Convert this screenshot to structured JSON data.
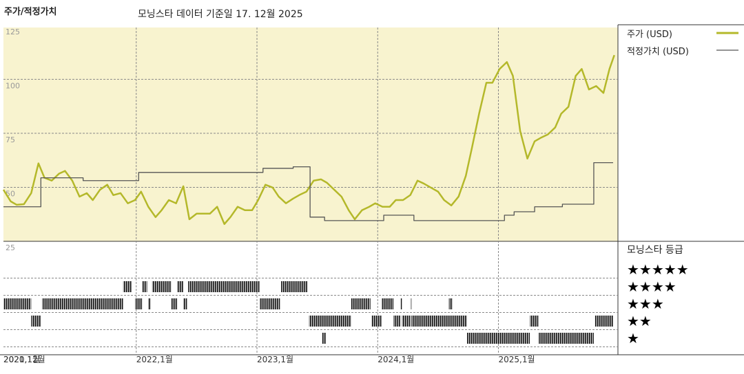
{
  "chart_data": {
    "type": "line",
    "title": "주가/적정가치",
    "subtitle": "모닝스타 데이터 기준일 17. 12월 2025",
    "xlim": [
      2020.9,
      2025.99
    ],
    "xticks": [
      {
        "value": 2020.92,
        "label": "2020,12월"
      },
      {
        "value": 2021.0,
        "label": "2021,1월"
      },
      {
        "value": 2022.0,
        "label": "2022,1월"
      },
      {
        "value": 2023.0,
        "label": "2023,1월"
      },
      {
        "value": 2024.0,
        "label": "2024,1월"
      },
      {
        "value": 2025.0,
        "label": "2025,1월"
      }
    ],
    "ylim": [
      25,
      124
    ],
    "yticks": [
      25,
      50,
      75,
      100,
      125
    ],
    "grid": true,
    "series": [
      {
        "name": "주가 (USD)",
        "color": "#b4b82a",
        "drawstyle": "line",
        "x": [
          2020.9,
          2020.96,
          2021.01,
          2021.07,
          2021.13,
          2021.19,
          2021.24,
          2021.3,
          2021.36,
          2021.41,
          2021.47,
          2021.53,
          2021.59,
          2021.64,
          2021.7,
          2021.76,
          2021.81,
          2021.87,
          2021.93,
          2021.99,
          2022.04,
          2022.1,
          2022.16,
          2022.21,
          2022.27,
          2022.33,
          2022.39,
          2022.44,
          2022.5,
          2022.56,
          2022.61,
          2022.67,
          2022.73,
          2022.78,
          2022.84,
          2022.9,
          2022.96,
          2023.01,
          2023.07,
          2023.13,
          2023.18,
          2023.24,
          2023.3,
          2023.36,
          2023.41,
          2023.47,
          2023.53,
          2023.58,
          2023.64,
          2023.7,
          2023.76,
          2023.81,
          2023.87,
          2023.93,
          2023.98,
          2024.04,
          2024.1,
          2024.15,
          2024.21,
          2024.27,
          2024.33,
          2024.38,
          2024.44,
          2024.5,
          2024.55,
          2024.61,
          2024.67,
          2024.73,
          2024.78,
          2024.84,
          2024.9,
          2024.95,
          2025.01,
          2025.07,
          2025.12,
          2025.18,
          2025.24,
          2025.3,
          2025.35,
          2025.41,
          2025.47,
          2025.52,
          2025.58,
          2025.64,
          2025.69,
          2025.75,
          2025.81,
          2025.87,
          2025.92,
          2025.96
        ],
        "values": [
          48.9,
          43.5,
          41.9,
          42.2,
          47.3,
          61.1,
          54.4,
          53.1,
          56.3,
          57.6,
          53.1,
          45.7,
          47.3,
          44.1,
          48.9,
          51.2,
          46.4,
          47.3,
          42.6,
          44.1,
          48.0,
          41.0,
          36.2,
          39.4,
          44.1,
          42.6,
          50.5,
          35.2,
          37.8,
          37.8,
          37.8,
          41.0,
          33.0,
          36.2,
          41.0,
          39.4,
          39.4,
          44.1,
          51.2,
          49.9,
          45.7,
          42.6,
          44.8,
          46.7,
          48.0,
          53.1,
          53.7,
          52.1,
          48.9,
          45.7,
          39.4,
          35.2,
          39.4,
          41.0,
          42.6,
          41.0,
          41.0,
          44.1,
          44.1,
          46.4,
          53.1,
          51.8,
          49.9,
          48.0,
          44.1,
          41.6,
          45.7,
          55.3,
          68.1,
          84.1,
          98.4,
          98.4,
          104.8,
          108.0,
          101.6,
          76.1,
          63.3,
          71.3,
          72.9,
          74.5,
          77.7,
          84.1,
          87.3,
          101.6,
          104.8,
          95.3,
          96.9,
          93.7,
          104.8,
          111.2
        ]
      },
      {
        "name": "적정가치 (USD)",
        "color": "#555555",
        "drawstyle": "steps-post",
        "x": [
          2020.9,
          2021.21,
          2021.56,
          2022.02,
          2023.05,
          2023.3,
          2023.44,
          2023.56,
          2024.05,
          2024.3,
          2025.05,
          2025.13,
          2025.3,
          2025.53,
          2025.79,
          2025.95
        ],
        "values": [
          41.0,
          54.4,
          53.1,
          56.9,
          58.8,
          59.5,
          36.2,
          34.6,
          37.1,
          34.6,
          37.1,
          38.7,
          41.0,
          42.2,
          61.4,
          61.4
        ]
      }
    ],
    "rating_title": "모닝스타 등급",
    "rating_labels": [
      "★★★★★",
      "★★★★",
      "★★★",
      "★★",
      "★"
    ],
    "rating_periods": [
      {
        "rating": 4,
        "start": 2021.89,
        "end": 2021.96
      },
      {
        "rating": 4,
        "start": 2022.05,
        "end": 2022.09
      },
      {
        "rating": 4,
        "start": 2022.13,
        "end": 2022.29
      },
      {
        "rating": 4,
        "start": 2022.34,
        "end": 2022.39
      },
      {
        "rating": 4,
        "start": 2022.43,
        "end": 2023.02
      },
      {
        "rating": 4,
        "start": 2023.2,
        "end": 2023.42
      },
      {
        "rating": 3,
        "start": 2020.9,
        "end": 2021.13
      },
      {
        "rating": 3,
        "start": 2021.22,
        "end": 2021.89
      },
      {
        "rating": 3,
        "start": 2021.99,
        "end": 2022.05
      },
      {
        "rating": 3,
        "start": 2022.1,
        "end": 2022.12
      },
      {
        "rating": 3,
        "start": 2022.29,
        "end": 2022.34
      },
      {
        "rating": 3,
        "start": 2022.39,
        "end": 2022.42
      },
      {
        "rating": 3,
        "start": 2023.02,
        "end": 2023.19
      },
      {
        "rating": 3,
        "start": 2023.78,
        "end": 2023.94
      },
      {
        "rating": 3,
        "start": 2024.03,
        "end": 2024.13
      },
      {
        "rating": 3,
        "start": 2024.19,
        "end": 2024.2
      },
      {
        "rating": 3,
        "start": 2024.27,
        "end": 2024.28
      },
      {
        "rating": 3,
        "start": 2024.59,
        "end": 2024.62
      },
      {
        "rating": 2,
        "start": 2021.13,
        "end": 2021.21
      },
      {
        "rating": 2,
        "start": 2023.43,
        "end": 2023.78
      },
      {
        "rating": 2,
        "start": 2023.95,
        "end": 2024.03
      },
      {
        "rating": 2,
        "start": 2024.13,
        "end": 2024.19
      },
      {
        "rating": 2,
        "start": 2024.2,
        "end": 2024.27
      },
      {
        "rating": 2,
        "start": 2024.28,
        "end": 2024.74
      },
      {
        "rating": 2,
        "start": 2025.26,
        "end": 2025.33
      },
      {
        "rating": 2,
        "start": 2025.8,
        "end": 2025.95
      },
      {
        "rating": 1,
        "start": 2023.54,
        "end": 2023.57
      },
      {
        "rating": 1,
        "start": 2024.74,
        "end": 2025.26
      },
      {
        "rating": 1,
        "start": 2025.33,
        "end": 2025.79
      }
    ]
  }
}
